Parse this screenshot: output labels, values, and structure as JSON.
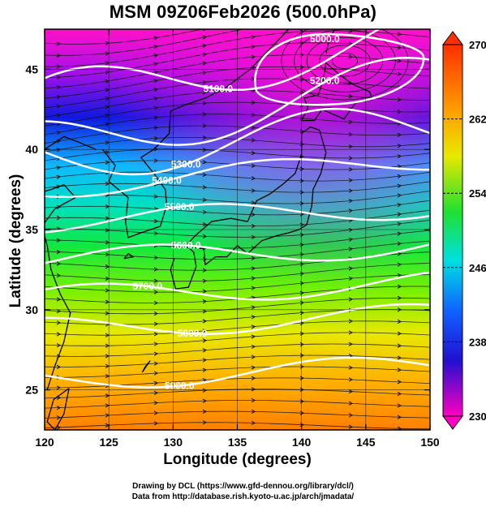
{
  "title": "MSM 09Z06Feb2026 (500.0hPa)",
  "x_axis": {
    "label": "Longitude (degrees)",
    "min": 120,
    "max": 150,
    "ticks": [
      "120",
      "125",
      "130",
      "135",
      "140",
      "145",
      "150"
    ]
  },
  "y_axis": {
    "label": "Latitude  (degrees)",
    "min": 22.5,
    "max": 47.5,
    "ticks": [
      "25",
      "30",
      "35",
      "40",
      "45"
    ]
  },
  "colorbar": {
    "min": 230,
    "max": 270,
    "labels": [
      "270",
      "262",
      "254",
      "246",
      "238",
      "230"
    ]
  },
  "contours": [
    {
      "label": "5000.0"
    },
    {
      "label": "5100.0"
    },
    {
      "label": "5200.0"
    },
    {
      "label": "5300.0"
    },
    {
      "label": "5400.0"
    },
    {
      "label": "5500.0"
    },
    {
      "label": "5600.0"
    },
    {
      "label": "5700.0"
    },
    {
      "label": "5800.0"
    },
    {
      "label": "5900.0"
    }
  ],
  "credits": {
    "line1": "Drawing by DCL (https://www.gfd-dennou.org/library/dcl/)",
    "line2": "Data from http://database.rish.kyoto-u.ac.jp/arch/jmadata/"
  },
  "colors": {
    "cold": "#e000c0",
    "blue": "#1010e0",
    "cyan": "#00d8f0",
    "green": "#00e060",
    "yellow": "#e8e800",
    "orange": "#ff9000",
    "contour": "#ffffff"
  }
}
